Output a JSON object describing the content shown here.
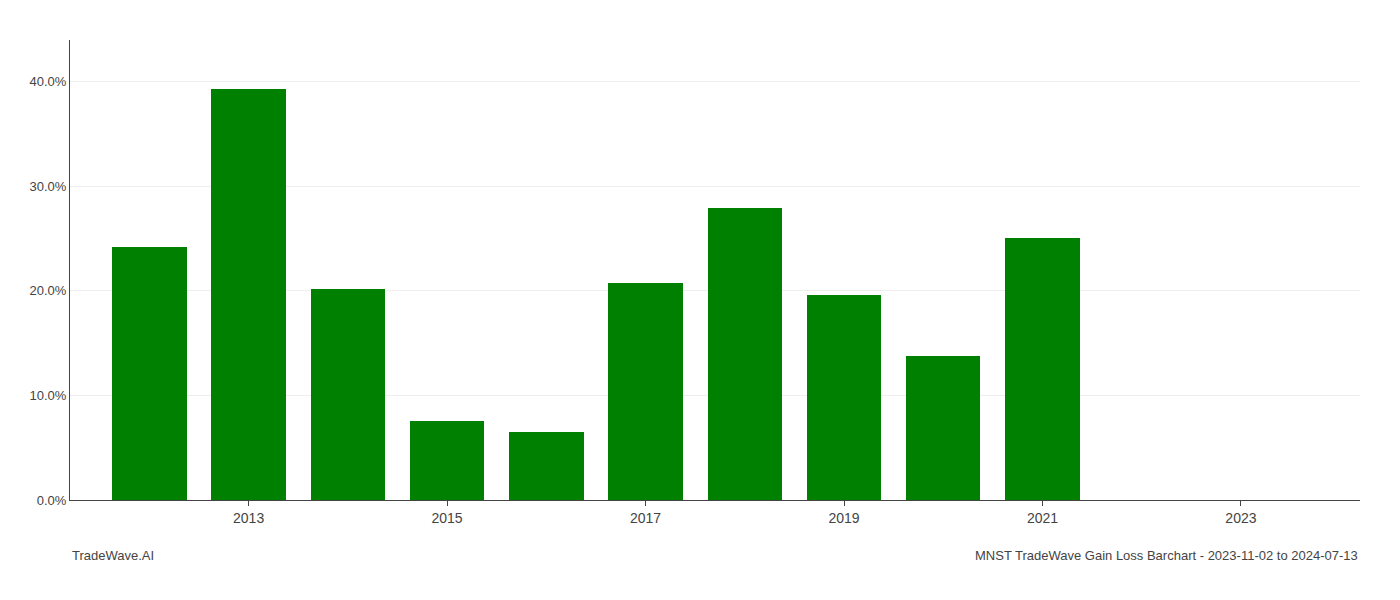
{
  "chart_data": {
    "type": "bar",
    "x": [
      2012,
      2013,
      2014,
      2015,
      2016,
      2017,
      2018,
      2019,
      2020,
      2021,
      2022
    ],
    "values": [
      0.242,
      0.393,
      0.202,
      0.076,
      0.065,
      0.208,
      0.279,
      0.196,
      0.138,
      0.251,
      0.0
    ],
    "color": "#008000",
    "xlim": [
      2011.2,
      2024.2
    ],
    "xticks": [
      2013,
      2015,
      2017,
      2019,
      2021,
      2023
    ],
    "ylim": [
      0,
      0.44
    ],
    "yticks": [
      {
        "value": 0.0,
        "label": "0.0%"
      },
      {
        "value": 0.1,
        "label": "10.0%"
      },
      {
        "value": 0.2,
        "label": "20.0%"
      },
      {
        "value": 0.3,
        "label": "30.0%"
      },
      {
        "value": 0.4,
        "label": "40.0%"
      }
    ],
    "grid": true,
    "annotations": [
      "TradeWave.AI",
      "MNST TradeWave Gain Loss Barchart - 2023-11-02 to 2024-07-13"
    ]
  }
}
